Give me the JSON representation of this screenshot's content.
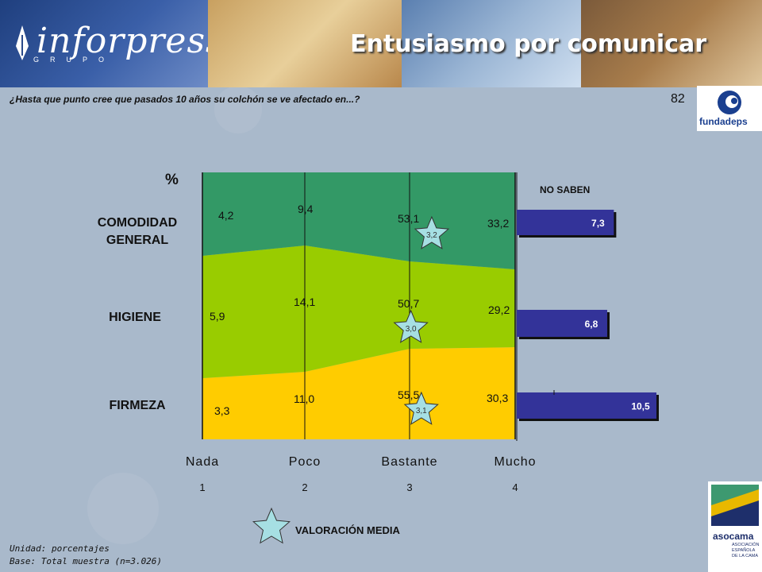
{
  "header": {
    "logo_text": "inforpress",
    "logo_subtext": "GRUPO",
    "title": "Entusiasmo por comunicar"
  },
  "question": "¿Hasta que punto cree que pasados 10 años su colchón se ve afectado en...?",
  "page_number": "82",
  "brand_logos": {
    "top_right": "fundadeps",
    "bottom_right": "asocama",
    "bottom_right_small": "ASOCIACIÓN ESPAÑOLA DE LA CAMA"
  },
  "footnotes": {
    "unit": "Unidad: porcentajes",
    "base": "Base: Total muestra (n=3.026)"
  },
  "chart_data": {
    "type": "area",
    "unit_label": "%",
    "categories": [
      "Nada",
      "Poco",
      "Bastante",
      "Mucho"
    ],
    "scale_numbers": [
      "1",
      "2",
      "3",
      "4"
    ],
    "series": [
      {
        "name": "FIRMEZA",
        "values": [
          3.3,
          11.0,
          55.5,
          30.3
        ],
        "labels": [
          "3,3",
          "11,0",
          "55,5",
          "30,3"
        ],
        "color": "#ffcc00",
        "mean": "3,1",
        "no_saben": 10.5,
        "no_saben_label": "10,5"
      },
      {
        "name": "HIGIENE",
        "values": [
          5.9,
          14.1,
          50.7,
          29.2
        ],
        "labels": [
          "5,9",
          "14,1",
          "50,7",
          "29,2"
        ],
        "color": "#99cc00",
        "mean": "3,0",
        "no_saben": 6.8,
        "no_saben_label": "6,8"
      },
      {
        "name": "COMODIDAD GENERAL",
        "values": [
          4.2,
          9.4,
          53.1,
          33.2
        ],
        "labels": [
          "4,2",
          "9,4",
          "53,1",
          "33,2"
        ],
        "color": "#339966",
        "mean": "3,2",
        "no_saben": 7.3,
        "no_saben_label": "7,3"
      }
    ],
    "no_saben_title": "NO SABEN",
    "legend_label": "VALORACIÓN MEDIA",
    "colors": {
      "bar": "#333399",
      "star": "#a6dfe3"
    }
  }
}
